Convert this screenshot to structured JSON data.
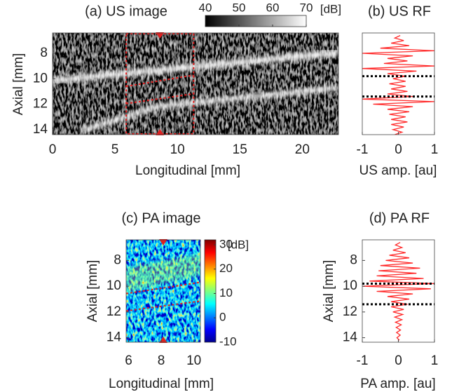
{
  "chart_data": [
    {
      "type": "heatmap",
      "title": "(a) US image",
      "xlabel": "Longitudinal [mm]",
      "ylabel": "Axial [mm]",
      "xlim": [
        0,
        22.9
      ],
      "xticks": [
        0,
        5,
        10,
        15,
        20
      ],
      "ylim": [
        6.4,
        14.4
      ],
      "yticks": [
        8,
        10,
        12,
        14
      ],
      "colormap": "gray",
      "roi_x": [
        5.9,
        11.3
      ],
      "colorbar": {
        "label": "[dB]",
        "lim": [
          40,
          70
        ],
        "ticks": [
          40,
          50,
          60,
          70
        ]
      }
    },
    {
      "type": "line",
      "title": "(b) US RF",
      "xlabel": "US amp. [au]",
      "color": "#ff2a2a",
      "xlim": [
        -1,
        1
      ],
      "xticks": [
        -1,
        0,
        1
      ],
      "ylim": [
        6.4,
        14.4
      ],
      "hlines": [
        9.8,
        11.4
      ],
      "x": [
        6.6,
        6.8,
        7.0,
        7.2,
        7.4,
        7.6,
        7.8,
        8.0,
        8.2,
        8.4,
        8.6,
        8.8,
        9.0,
        9.2,
        9.4,
        9.6,
        9.8,
        10.0,
        10.2,
        10.4,
        10.6,
        10.8,
        11.0,
        11.2,
        11.4,
        11.6,
        11.8,
        12.0,
        12.2,
        12.4,
        12.6,
        12.8,
        13.0,
        13.2,
        13.4,
        13.6,
        13.8,
        14.0,
        14.2,
        14.4
      ],
      "values": [
        0.05,
        -0.1,
        0.15,
        -0.2,
        0.3,
        -0.5,
        1,
        -1,
        0.4,
        -0.3,
        0.25,
        -0.4,
        1,
        -1,
        0.5,
        -0.3,
        0.2,
        -0.15,
        0.2,
        -0.25,
        0.2,
        -0.2,
        0.25,
        -0.3,
        0.4,
        -1,
        1,
        -0.7,
        0.4,
        -0.3,
        0.3,
        -0.25,
        0.2,
        -0.2,
        0.25,
        -0.2,
        0.15,
        -0.15,
        0.1,
        -0.1
      ]
    },
    {
      "type": "heatmap",
      "title": "(c) PA image",
      "xlabel": "Longitudinal [mm]",
      "ylabel": "Axial [mm]",
      "xlim": [
        5.85,
        10.4
      ],
      "xticks": [
        6,
        8,
        10
      ],
      "ylim": [
        6.4,
        14.35
      ],
      "yticks": [
        8,
        10,
        12,
        14
      ],
      "colormap": "jet",
      "colorbar": {
        "label": "[dB]",
        "lim": [
          -10,
          32
        ],
        "ticks": [
          30,
          20,
          10,
          0,
          -10
        ]
      }
    },
    {
      "type": "line",
      "title": "(d) PA RF",
      "xlabel": "PA amp. [au]",
      "ylabel": "Axial [mm]",
      "color": "#ff2a2a",
      "xlim": [
        -1,
        1
      ],
      "xticks": [
        -1,
        0,
        1
      ],
      "ylim": [
        6.4,
        14.35
      ],
      "yticks": [
        8,
        10,
        12,
        14
      ],
      "hlines": [
        9.8,
        11.4
      ],
      "x": [
        6.6,
        6.8,
        7.0,
        7.2,
        7.4,
        7.6,
        7.8,
        8.0,
        8.2,
        8.4,
        8.6,
        8.8,
        9.0,
        9.2,
        9.4,
        9.6,
        9.8,
        10.0,
        10.2,
        10.4,
        10.6,
        10.8,
        11.0,
        11.2,
        11.4,
        11.6,
        11.8,
        12.0,
        12.2,
        12.4,
        12.6,
        12.8,
        13.0,
        13.2,
        13.4,
        13.6,
        13.8,
        14.0,
        14.2
      ],
      "values": [
        0.05,
        -0.08,
        0.1,
        -0.15,
        0.2,
        -0.25,
        0.3,
        -0.35,
        0.4,
        -0.5,
        0.6,
        -0.55,
        0.5,
        -0.6,
        0.7,
        -0.8,
        1,
        -1,
        0.9,
        -0.6,
        0.4,
        -0.3,
        0.3,
        -0.2,
        0.25,
        -0.2,
        0.15,
        -0.15,
        0.12,
        -0.1,
        0.1,
        -0.08,
        0.08,
        -0.06,
        0.06,
        -0.05,
        0.05,
        -0.04,
        0.03
      ]
    }
  ]
}
